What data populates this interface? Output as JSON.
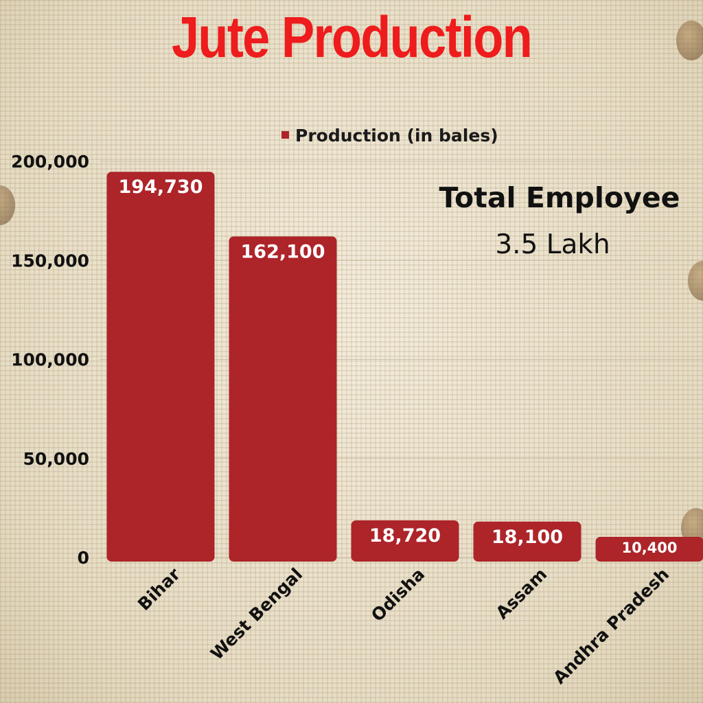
{
  "chart_data": {
    "type": "bar",
    "title": "Jute Production",
    "legend": {
      "entries": [
        "Production (in bales)"
      ],
      "position": "top"
    },
    "categories": [
      "Bihar",
      "West Bengal",
      "Odisha",
      "Assam",
      "Andhra Pradesh"
    ],
    "series": [
      {
        "name": "Production (in bales)",
        "values": [
          194730,
          162100,
          18720,
          18100,
          10400
        ],
        "labels": [
          "194,730",
          "162,100",
          "18,720",
          "18,100",
          "10,400"
        ]
      }
    ],
    "ylim": [
      0,
      200000
    ],
    "yticks": [
      0,
      50000,
      100000,
      150000,
      200000
    ],
    "ytick_labels": [
      "0",
      "50,000",
      "100,000",
      "150,000",
      "200,000"
    ],
    "grid": true,
    "bar_color": "#ad2429",
    "title_color": "#ee1c1c",
    "annotation": {
      "title": "Total Employee",
      "value": "3.5 Lakh"
    }
  }
}
